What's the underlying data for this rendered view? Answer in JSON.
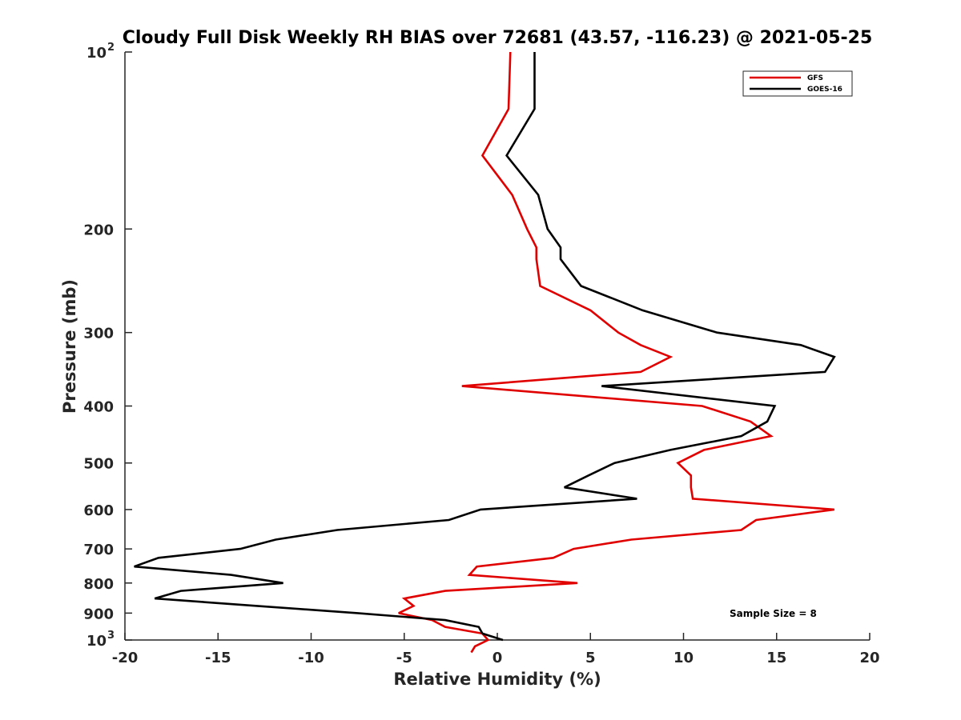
{
  "chart_data": {
    "type": "line",
    "title": "Cloudy Full Disk Weekly RH BIAS over 72681 (43.57, -116.23) @ 2021-05-25",
    "xlabel": "Relative Humidity (%)",
    "ylabel": "Pressure (mb)",
    "xlim": [
      -20,
      20
    ],
    "ylim": [
      100,
      1000
    ],
    "y_scale": "log",
    "y_reversed": true,
    "grid": false,
    "legend_position": "top-right",
    "x_ticks": [
      {
        "value": -20,
        "label": "-20"
      },
      {
        "value": -15,
        "label": "-15"
      },
      {
        "value": -10,
        "label": "-10"
      },
      {
        "value": -5,
        "label": "-5"
      },
      {
        "value": 0,
        "label": "0"
      },
      {
        "value": 5,
        "label": "5"
      },
      {
        "value": 10,
        "label": "10"
      },
      {
        "value": 15,
        "label": "15"
      },
      {
        "value": 20,
        "label": "20"
      }
    ],
    "y_ticks": [
      {
        "value": 100,
        "label": "10",
        "sup": "2"
      },
      {
        "value": 200,
        "label": "200",
        "sup": ""
      },
      {
        "value": 300,
        "label": "300",
        "sup": ""
      },
      {
        "value": 400,
        "label": "400",
        "sup": ""
      },
      {
        "value": 500,
        "label": "500",
        "sup": ""
      },
      {
        "value": 600,
        "label": "600",
        "sup": ""
      },
      {
        "value": 700,
        "label": "700",
        "sup": ""
      },
      {
        "value": 800,
        "label": "800",
        "sup": ""
      },
      {
        "value": 900,
        "label": "900",
        "sup": ""
      },
      {
        "value": 1000,
        "label": "10",
        "sup": "3"
      }
    ],
    "series": [
      {
        "name": "GFS",
        "color": "#e00000",
        "points": [
          [
            0.7,
            100
          ],
          [
            0.6,
            125
          ],
          [
            -0.8,
            150
          ],
          [
            0.8,
            175
          ],
          [
            1.6,
            200
          ],
          [
            2.1,
            215
          ],
          [
            2.1,
            225
          ],
          [
            2.3,
            250
          ],
          [
            5.0,
            275
          ],
          [
            6.5,
            300
          ],
          [
            7.7,
            315
          ],
          [
            9.3,
            330
          ],
          [
            7.7,
            350
          ],
          [
            -1.9,
            370
          ],
          [
            11.0,
            400
          ],
          [
            13.6,
            425
          ],
          [
            14.7,
            450
          ],
          [
            11.1,
            475
          ],
          [
            9.7,
            500
          ],
          [
            10.4,
            525
          ],
          [
            10.4,
            550
          ],
          [
            10.5,
            575
          ],
          [
            18.1,
            600
          ],
          [
            13.9,
            625
          ],
          [
            13.1,
            650
          ],
          [
            7.2,
            675
          ],
          [
            4.1,
            700
          ],
          [
            3.0,
            725
          ],
          [
            -1.1,
            750
          ],
          [
            -1.5,
            775
          ],
          [
            4.3,
            800
          ],
          [
            -2.8,
            825
          ],
          [
            -5.0,
            850
          ],
          [
            -4.5,
            875
          ],
          [
            -5.3,
            900
          ],
          [
            -3.5,
            925
          ],
          [
            -2.8,
            950
          ],
          [
            -0.8,
            975
          ],
          [
            -0.5,
            1000
          ],
          [
            -1.2,
            1025
          ],
          [
            -1.4,
            1050
          ]
        ]
      },
      {
        "name": "GOES-16",
        "color": "#000000",
        "points": [
          [
            2.0,
            100
          ],
          [
            2.0,
            125
          ],
          [
            0.5,
            150
          ],
          [
            2.2,
            175
          ],
          [
            2.7,
            200
          ],
          [
            3.4,
            215
          ],
          [
            3.4,
            225
          ],
          [
            4.5,
            250
          ],
          [
            7.8,
            275
          ],
          [
            11.8,
            300
          ],
          [
            16.3,
            315
          ],
          [
            18.1,
            330
          ],
          [
            17.6,
            350
          ],
          [
            5.6,
            370
          ],
          [
            14.9,
            400
          ],
          [
            14.5,
            425
          ],
          [
            13.1,
            450
          ],
          [
            9.3,
            475
          ],
          [
            6.3,
            500
          ],
          [
            4.9,
            525
          ],
          [
            3.6,
            550
          ],
          [
            7.5,
            575
          ],
          [
            -0.9,
            600
          ],
          [
            -2.6,
            625
          ],
          [
            -8.6,
            650
          ],
          [
            -11.9,
            675
          ],
          [
            -13.8,
            700
          ],
          [
            -18.2,
            725
          ],
          [
            -19.5,
            750
          ],
          [
            -14.3,
            775
          ],
          [
            -11.5,
            800
          ],
          [
            -17.0,
            825
          ],
          [
            -18.4,
            850
          ],
          [
            -12.9,
            875
          ],
          [
            -7.5,
            900
          ],
          [
            -2.8,
            925
          ],
          [
            -1.0,
            950
          ],
          [
            -0.8,
            975
          ],
          [
            0.3,
            1000
          ]
        ]
      }
    ],
    "annotations": [
      {
        "text": "Sample Size = 8"
      }
    ]
  }
}
